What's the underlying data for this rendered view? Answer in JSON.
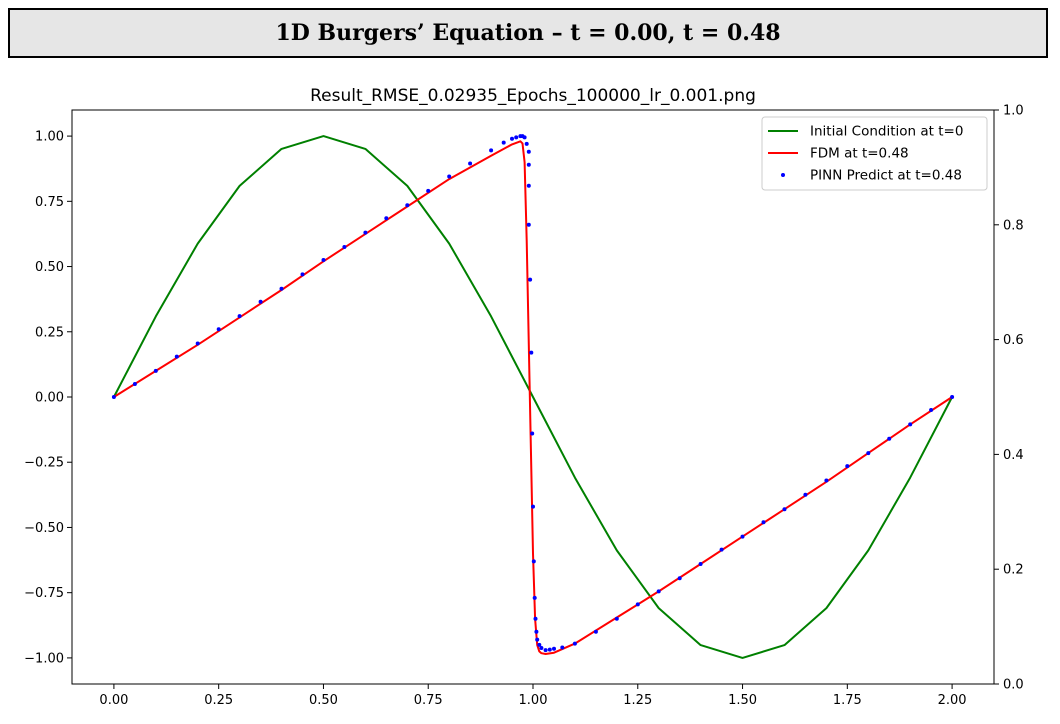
{
  "banner": {
    "title": "1D Burgers’ Equation – t = 0.00, t = 0.48"
  },
  "chart_data": {
    "type": "line",
    "title": "Result_RMSE_0.02935_Epochs_100000_lr_0.001.png",
    "xlabel": "",
    "ylabel": "",
    "xlim": [
      -0.1,
      2.1
    ],
    "ylim": [
      -1.1,
      1.1
    ],
    "xticks": [
      "0.00",
      "0.25",
      "0.50",
      "0.75",
      "1.00",
      "1.25",
      "1.50",
      "1.75",
      "2.00"
    ],
    "yticks": [
      "−1.00",
      "−0.75",
      "−0.50",
      "−0.25",
      "0.00",
      "0.25",
      "0.50",
      "0.75",
      "1.00"
    ],
    "secondary_y": {
      "ylim": [
        0.0,
        1.0
      ],
      "ticks": [
        "0.0",
        "0.2",
        "0.4",
        "0.6",
        "0.8",
        "1.0"
      ]
    },
    "grid": false,
    "legend_position": "top-right",
    "series": [
      {
        "name": "Initial Condition at t=0",
        "style": "line",
        "color": "#008000",
        "x": [
          0.0,
          0.1,
          0.2,
          0.3,
          0.4,
          0.5,
          0.6,
          0.7,
          0.8,
          0.9,
          1.0,
          1.1,
          1.2,
          1.3,
          1.4,
          1.5,
          1.6,
          1.7,
          1.8,
          1.9,
          2.0
        ],
        "y": [
          0.0,
          0.309,
          0.588,
          0.809,
          0.951,
          1.0,
          0.951,
          0.809,
          0.588,
          0.309,
          0.0,
          -0.309,
          -0.588,
          -0.809,
          -0.951,
          -1.0,
          -0.951,
          -0.809,
          -0.588,
          -0.309,
          0.0
        ]
      },
      {
        "name": "FDM at t=0.48",
        "style": "line",
        "color": "#ff0000",
        "x": [
          0.0,
          0.1,
          0.2,
          0.3,
          0.4,
          0.5,
          0.6,
          0.7,
          0.8,
          0.9,
          0.95,
          0.97,
          0.975,
          0.98,
          0.985,
          0.99,
          0.995,
          1.0,
          1.005,
          1.01,
          1.015,
          1.02,
          1.03,
          1.05,
          1.1,
          1.2,
          1.3,
          1.4,
          1.5,
          1.6,
          1.7,
          1.8,
          1.9,
          2.0
        ],
        "y": [
          0.0,
          0.1,
          0.2,
          0.305,
          0.41,
          0.52,
          0.625,
          0.73,
          0.835,
          0.925,
          0.968,
          0.98,
          0.972,
          0.9,
          0.6,
          0.2,
          -0.2,
          -0.6,
          -0.85,
          -0.95,
          -0.975,
          -0.982,
          -0.985,
          -0.98,
          -0.945,
          -0.845,
          -0.745,
          -0.64,
          -0.535,
          -0.43,
          -0.325,
          -0.215,
          -0.105,
          0.0
        ]
      },
      {
        "name": "PINN Predict at t=0.48",
        "style": "scatter",
        "color": "#0000ff",
        "x": [
          0.0,
          0.05,
          0.1,
          0.15,
          0.2,
          0.25,
          0.3,
          0.35,
          0.4,
          0.45,
          0.5,
          0.55,
          0.6,
          0.65,
          0.7,
          0.75,
          0.8,
          0.85,
          0.9,
          0.93,
          0.95,
          0.96,
          0.97,
          0.975,
          0.98,
          0.985,
          0.99,
          0.99,
          0.99,
          0.99,
          0.993,
          0.996,
          0.998,
          1.0,
          1.002,
          1.004,
          1.006,
          1.008,
          1.01,
          1.015,
          1.02,
          1.03,
          1.04,
          1.05,
          1.07,
          1.1,
          1.15,
          1.2,
          1.25,
          1.3,
          1.35,
          1.4,
          1.45,
          1.5,
          1.55,
          1.6,
          1.65,
          1.7,
          1.75,
          1.8,
          1.85,
          1.9,
          1.95,
          2.0
        ],
        "y": [
          0.0,
          0.05,
          0.1,
          0.155,
          0.205,
          0.26,
          0.31,
          0.365,
          0.415,
          0.47,
          0.525,
          0.575,
          0.63,
          0.685,
          0.735,
          0.79,
          0.845,
          0.895,
          0.945,
          0.975,
          0.99,
          0.995,
          1.0,
          1.0,
          0.995,
          0.97,
          0.94,
          0.89,
          0.81,
          0.66,
          0.45,
          0.17,
          -0.14,
          -0.42,
          -0.63,
          -0.77,
          -0.85,
          -0.9,
          -0.93,
          -0.95,
          -0.962,
          -0.97,
          -0.968,
          -0.965,
          -0.96,
          -0.945,
          -0.9,
          -0.85,
          -0.795,
          -0.745,
          -0.695,
          -0.64,
          -0.585,
          -0.535,
          -0.48,
          -0.43,
          -0.375,
          -0.32,
          -0.265,
          -0.215,
          -0.16,
          -0.105,
          -0.05,
          0.0
        ]
      }
    ]
  }
}
